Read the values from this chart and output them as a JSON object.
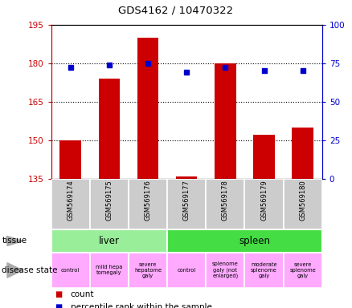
{
  "title": "GDS4162 / 10470322",
  "samples": [
    "GSM569174",
    "GSM569175",
    "GSM569176",
    "GSM569177",
    "GSM569178",
    "GSM569179",
    "GSM569180"
  ],
  "count_values": [
    150,
    174,
    190,
    136,
    180,
    152,
    155
  ],
  "percentile_values": [
    72,
    74,
    75,
    69,
    72,
    70,
    70
  ],
  "ylim_left": [
    135,
    195
  ],
  "ylim_right": [
    0,
    100
  ],
  "yticks_left": [
    135,
    150,
    165,
    180,
    195
  ],
  "yticks_right": [
    0,
    25,
    50,
    75,
    100
  ],
  "count_color": "#cc0000",
  "percentile_color": "#0000cc",
  "bar_baseline": 135,
  "liver_color": "#99ee99",
  "spleen_color": "#44dd44",
  "disease_color": "#ffaaff",
  "sample_bg_color": "#cccccc",
  "ylabel_left_color": "#cc0000",
  "ylabel_right_color": "#0000cc",
  "background_color": "#ffffff",
  "disease_labels": [
    "control",
    "mild hepa\ntomegaly",
    "severe\nhepatome\ngaly",
    "control",
    "splenome\ngaly (not\nenlarged)",
    "moderate\nsplenome\ngaly",
    "severe\nsplenome\ngaly"
  ],
  "liver_samples": [
    0,
    1,
    2
  ],
  "spleen_samples": [
    3,
    4,
    5,
    6
  ]
}
